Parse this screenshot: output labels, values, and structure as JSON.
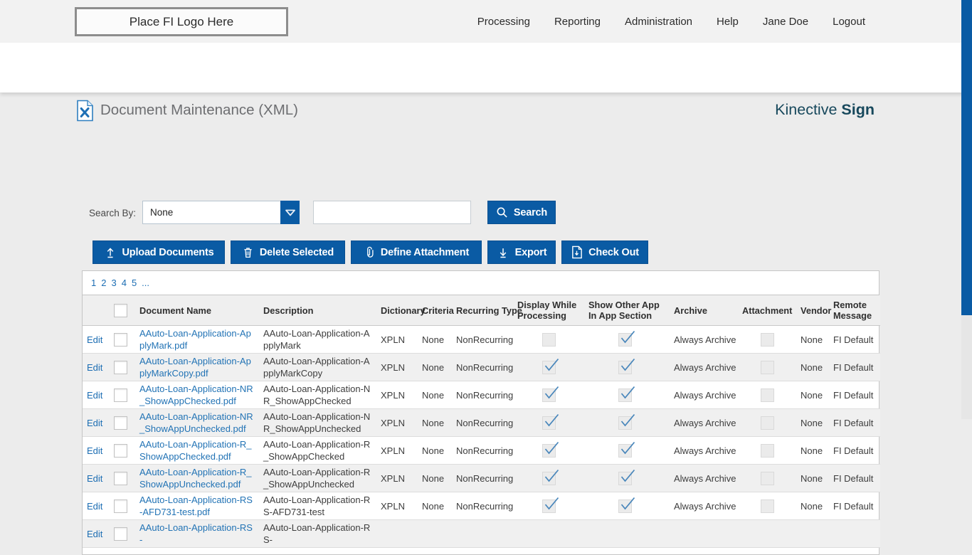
{
  "header": {
    "logo_placeholder": "Place FI Logo Here",
    "nav": [
      {
        "label": "Processing"
      },
      {
        "label": "Reporting"
      },
      {
        "label": "Administration"
      },
      {
        "label": "Help"
      },
      {
        "label": "Jane Doe"
      },
      {
        "label": "Logout"
      }
    ]
  },
  "title_bar": {
    "title": "Document Maintenance (XML)",
    "brand": "Kinective",
    "brand_bold": "Sign"
  },
  "search": {
    "label": "Search By:",
    "dropdown_value": "None",
    "input_value": "",
    "button": "Search"
  },
  "toolbar": {
    "upload": "Upload Documents",
    "delete": "Delete Selected",
    "define": "Define Attachment",
    "export": "Export",
    "checkout": "Check Out"
  },
  "pagination": {
    "pages": [
      "1",
      "2",
      "3",
      "4",
      "5",
      "..."
    ]
  },
  "table": {
    "edit_label": "Edit",
    "columns": [
      "Document Name",
      "Description",
      "Dictionary",
      "Criteria",
      "Recurring Type",
      "Display While Processing",
      "Show Other App In App Section",
      "Archive",
      "Attachment",
      "Vendor",
      "Remote Message"
    ],
    "rows": [
      {
        "name": "AAuto-Loan-Application-ApplyMark.pdf",
        "desc": "AAuto-Loan-Application-ApplyMark",
        "dictionary": "XPLN",
        "criteria": "None",
        "recurring": "NonRecurring",
        "display_while_processing": false,
        "show_other_app": true,
        "archive": "Always Archive",
        "attachment": false,
        "vendor": "None",
        "remote": "FI Default"
      },
      {
        "name": "AAuto-Loan-Application-ApplyMarkCopy.pdf",
        "desc": "AAuto-Loan-Application-ApplyMarkCopy",
        "dictionary": "XPLN",
        "criteria": "None",
        "recurring": "NonRecurring",
        "display_while_processing": true,
        "show_other_app": true,
        "archive": "Always Archive",
        "attachment": false,
        "vendor": "None",
        "remote": "FI Default"
      },
      {
        "name": "AAuto-Loan-Application-NR_ShowAppChecked.pdf",
        "desc": "AAuto-Loan-Application-NR_ShowAppChecked",
        "dictionary": "XPLN",
        "criteria": "None",
        "recurring": "NonRecurring",
        "display_while_processing": true,
        "show_other_app": true,
        "archive": "Always Archive",
        "attachment": false,
        "vendor": "None",
        "remote": "FI Default"
      },
      {
        "name": "AAuto-Loan-Application-NR_ShowAppUnchecked.pdf",
        "desc": "AAuto-Loan-Application-NR_ShowAppUnchecked",
        "dictionary": "XPLN",
        "criteria": "None",
        "recurring": "NonRecurring",
        "display_while_processing": true,
        "show_other_app": true,
        "archive": "Always Archive",
        "attachment": false,
        "vendor": "None",
        "remote": "FI Default"
      },
      {
        "name": "AAuto-Loan-Application-R_ShowAppChecked.pdf",
        "desc": "AAuto-Loan-Application-R_ShowAppChecked",
        "dictionary": "XPLN",
        "criteria": "None",
        "recurring": "NonRecurring",
        "display_while_processing": true,
        "show_other_app": true,
        "archive": "Always Archive",
        "attachment": false,
        "vendor": "None",
        "remote": "FI Default"
      },
      {
        "name": "AAuto-Loan-Application-R_ShowAppUnchecked.pdf",
        "desc": "AAuto-Loan-Application-R_ShowAppUnchecked",
        "dictionary": "XPLN",
        "criteria": "None",
        "recurring": "NonRecurring",
        "display_while_processing": true,
        "show_other_app": true,
        "archive": "Always Archive",
        "attachment": false,
        "vendor": "None",
        "remote": "FI Default"
      },
      {
        "name": "AAuto-Loan-Application-RS-AFD731-test.pdf",
        "desc": "AAuto-Loan-Application-RS-AFD731-test",
        "dictionary": "XPLN",
        "criteria": "None",
        "recurring": "NonRecurring",
        "display_while_processing": true,
        "show_other_app": true,
        "archive": "Always Archive",
        "attachment": false,
        "vendor": "None",
        "remote": "FI Default"
      },
      {
        "name": "AAuto-Loan-Application-RS-",
        "desc": "AAuto-Loan-Application-RS-",
        "dictionary": "",
        "criteria": "",
        "recurring": "",
        "display_while_processing": null,
        "show_other_app": null,
        "archive": "",
        "attachment": null,
        "vendor": "",
        "remote": "",
        "partial": true
      }
    ]
  },
  "colors": {
    "accent_blue": "#0a5ba4",
    "link_blue": "#1b6db3",
    "brand_teal": "#17485c",
    "check_blue": "#4886bb"
  }
}
